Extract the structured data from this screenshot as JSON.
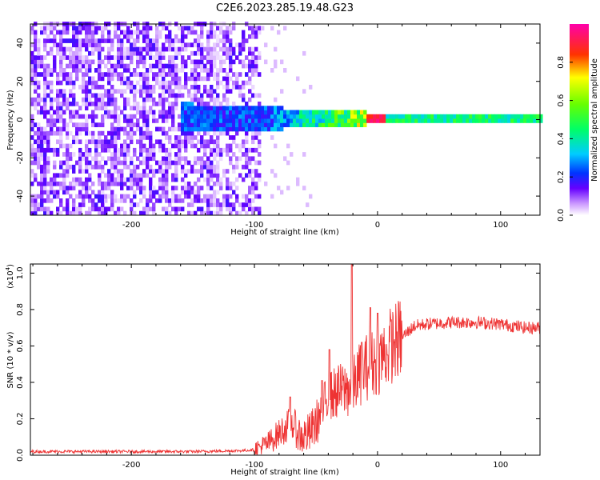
{
  "title": "C2E6.2023.285.19.48.G23",
  "chart_data": [
    {
      "type": "heatmap",
      "xlabel": "Height of straight line (km)",
      "ylabel": "Frequency (Hz)",
      "xlim": [
        -282,
        132
      ],
      "ylim": [
        -50,
        50
      ],
      "xticks": [
        -200,
        -100,
        0,
        100
      ],
      "xtick_labels": [
        "-200",
        "-100",
        "0",
        "100"
      ],
      "yticks": [
        -40,
        -20,
        0,
        20,
        40
      ],
      "ytick_labels": [
        "-40",
        "-20",
        "0",
        "20",
        "40"
      ],
      "colorbar": {
        "label": "Normalized spectral amplitude",
        "range": [
          0,
          1
        ],
        "ticks": [
          0,
          0.2,
          0.4,
          0.6,
          0.8
        ],
        "tick_labels": [
          "0.0",
          "0.2",
          "0.4",
          "0.6",
          "0.8"
        ]
      },
      "description_regions": [
        {
          "x_range": [
            -282,
            -95
          ],
          "freq_range": [
            -50,
            50
          ],
          "amplitude": [
            0.0,
            0.2
          ]
        },
        {
          "x_range": [
            -160,
            -90
          ],
          "freq_range": [
            -8,
            8
          ],
          "amplitude": [
            0.1,
            0.3
          ]
        },
        {
          "x_range": [
            -90,
            -10
          ],
          "freq_range": [
            -4,
            4
          ],
          "amplitude": [
            0.3,
            0.7
          ]
        },
        {
          "x_range": [
            -20,
            5
          ],
          "freq_range": [
            -1.5,
            1.5
          ],
          "amplitude": [
            0.8,
            1.0
          ]
        },
        {
          "x_range": [
            5,
            132
          ],
          "freq_range": [
            -1.5,
            3
          ],
          "amplitude": [
            0.3,
            0.55
          ]
        }
      ]
    },
    {
      "type": "line",
      "xlabel": "Height of straight line (km)",
      "ylabel": "SNR (10 * v/v)",
      "scale_label": "(x10",
      "scale_exp": "4",
      "scale_close": ")",
      "xlim": [
        -282,
        132
      ],
      "ylim": [
        0,
        1.05
      ],
      "xticks": [
        -200,
        -100,
        0,
        100
      ],
      "xtick_labels": [
        "-200",
        "-100",
        "0",
        "100"
      ],
      "yticks": [
        0,
        0.2,
        0.4,
        0.6,
        0.8,
        1.0
      ],
      "ytick_labels": [
        "0.0",
        "0.2",
        "0.4",
        "0.6",
        "0.8",
        "1.0"
      ],
      "series": [
        {
          "color": "#ee3333",
          "x": [
            -282,
            -250,
            -200,
            -150,
            -110,
            -100,
            -90,
            -80,
            -70,
            -62,
            -55,
            -48,
            -40,
            -32,
            -25,
            -20,
            -15,
            -10,
            -5,
            0,
            5,
            10,
            20,
            30,
            40,
            60,
            80,
            100,
            120,
            132
          ],
          "y": [
            0.02,
            0.02,
            0.02,
            0.02,
            0.025,
            0.03,
            0.06,
            0.12,
            0.18,
            0.1,
            0.12,
            0.2,
            0.32,
            0.35,
            0.36,
            0.38,
            0.44,
            0.48,
            0.5,
            0.52,
            0.55,
            0.6,
            0.65,
            0.71,
            0.72,
            0.73,
            0.73,
            0.72,
            0.7,
            0.7
          ],
          "spikes": [
            {
              "x": -71,
              "y": 0.32
            },
            {
              "x": -45,
              "y": 0.41
            },
            {
              "x": -39,
              "y": 0.58
            },
            {
              "x": -21,
              "y": 1.05
            },
            {
              "x": -13,
              "y": 0.62
            },
            {
              "x": -6,
              "y": 0.81
            },
            {
              "x": 0,
              "y": 0.78
            },
            {
              "x": 8,
              "y": 0.55
            }
          ]
        }
      ]
    }
  ],
  "colors": {
    "trace": "#ee3333",
    "axes": "#000000",
    "background": "#ffffff"
  }
}
